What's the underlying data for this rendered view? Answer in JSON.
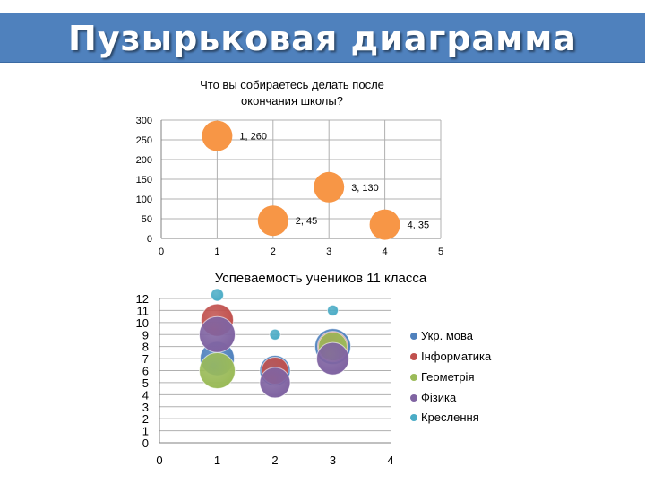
{
  "slide": {
    "title": "Пузырьковая диаграмма"
  },
  "colors": {
    "title_bar": "#4f81bd",
    "bubble_orange": "#f79646",
    "s_ukr": "#4f81bd",
    "s_inf": "#c0504d",
    "s_geo": "#9bbb59",
    "s_fiz": "#8064a2",
    "s_kres": "#4bacc6"
  },
  "chart_data": [
    {
      "type": "scatter",
      "title": "Что вы собираетесь делать после окончания школы?",
      "xlim": [
        0,
        5
      ],
      "ylim": [
        0,
        300
      ],
      "x_ticks": [
        "0",
        "1",
        "2",
        "3",
        "4",
        "5"
      ],
      "y_ticks": [
        "0",
        "50",
        "100",
        "150",
        "200",
        "250",
        "300"
      ],
      "grid": true,
      "legend": "none",
      "points": [
        {
          "x": 1,
          "y": 260,
          "label": "1, 260"
        },
        {
          "x": 2,
          "y": 45,
          "label": "2, 45"
        },
        {
          "x": 3,
          "y": 130,
          "label": "3, 130"
        },
        {
          "x": 4,
          "y": 35,
          "label": "4, 35"
        }
      ]
    },
    {
      "type": "scatter",
      "title": "Успеваемость учеников 11 класса",
      "xlim": [
        0,
        4
      ],
      "ylim": [
        0,
        12
      ],
      "x_ticks": [
        "0",
        "1",
        "2",
        "3",
        "4"
      ],
      "y_ticks": [
        "0",
        "1",
        "2",
        "3",
        "4",
        "5",
        "6",
        "7",
        "8",
        "9",
        "10",
        "11",
        "12"
      ],
      "grid": true,
      "legend": "right",
      "series": [
        {
          "name": "Укр. мова",
          "points": [
            {
              "x": 1,
              "y": 7,
              "size": 19
            },
            {
              "x": 2,
              "y": 6,
              "size": 17
            },
            {
              "x": 3,
              "y": 8,
              "size": 20
            }
          ]
        },
        {
          "name": "Інформатика",
          "points": [
            {
              "x": 1,
              "y": 10.2,
              "size": 18
            },
            {
              "x": 2,
              "y": 6,
              "size": 15
            },
            {
              "x": 3,
              "y": 8,
              "size": 17
            }
          ]
        },
        {
          "name": "Геометрія",
          "points": [
            {
              "x": 1,
              "y": 6,
              "size": 20
            },
            {
              "x": 3,
              "y": 8,
              "size": 16
            }
          ]
        },
        {
          "name": "Фізика",
          "points": [
            {
              "x": 1,
              "y": 9,
              "size": 20
            },
            {
              "x": 2,
              "y": 5,
              "size": 17
            },
            {
              "x": 3,
              "y": 7,
              "size": 18
            }
          ]
        },
        {
          "name": "Креслення",
          "points": [
            {
              "x": 1,
              "y": 12.3,
              "size": 7
            },
            {
              "x": 2,
              "y": 9,
              "size": 6
            },
            {
              "x": 3,
              "y": 11,
              "size": 6
            }
          ]
        }
      ]
    }
  ]
}
